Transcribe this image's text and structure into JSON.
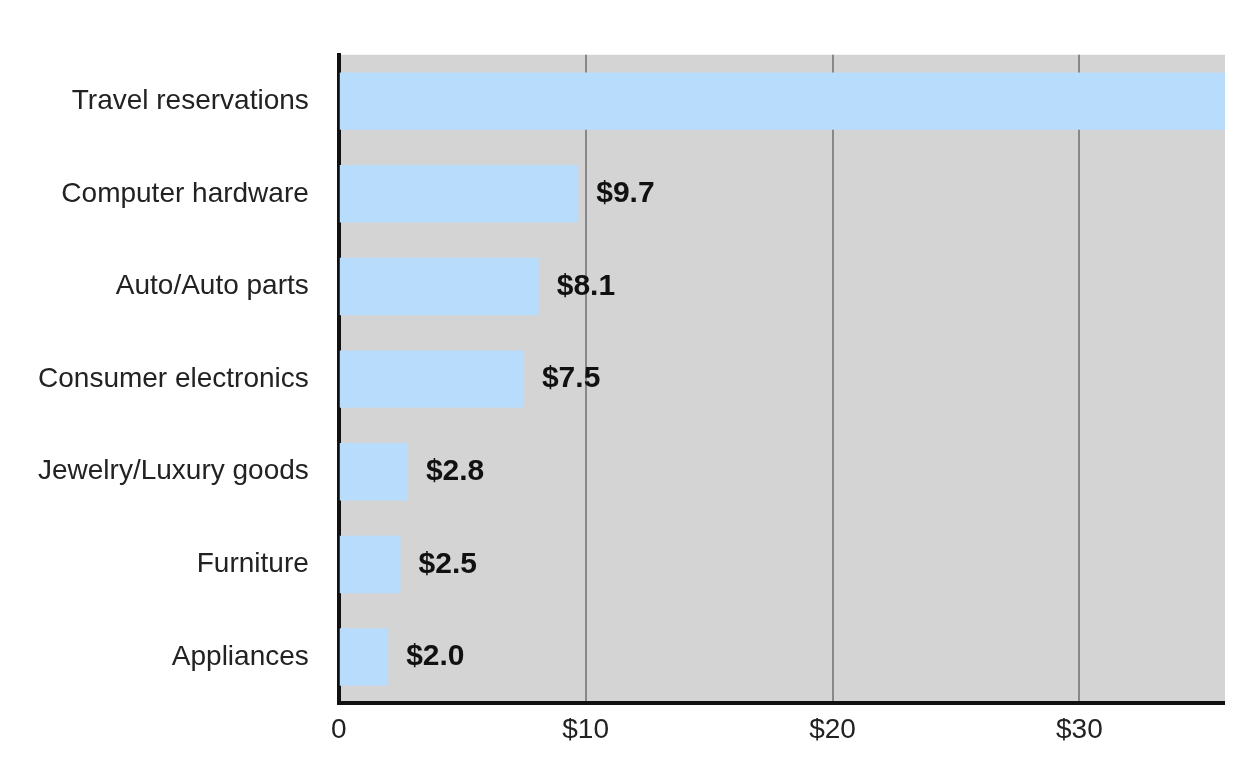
{
  "chart_data": {
    "type": "bar",
    "orientation": "horizontal",
    "categories": [
      "Travel reservations",
      "Computer hardware",
      "Auto/Auto parts",
      "Consumer electronics",
      "Jewelry/Luxury goods",
      "Furniture",
      "Appliances"
    ],
    "values": [
      35.9,
      9.7,
      8.1,
      7.5,
      2.8,
      2.5,
      2.0
    ],
    "value_labels": [
      null,
      "$9.7",
      "$8.1",
      "$7.5",
      "$2.8",
      "$2.5",
      "$2.0"
    ],
    "color": "#b8dcfc",
    "xlim": [
      0,
      35.9
    ],
    "xticks": [
      0,
      {
        "value": 10,
        "label": "$10"
      },
      {
        "value": 20,
        "label": "$20"
      },
      {
        "value": 30,
        "label": "$30"
      }
    ],
    "grid": "x",
    "legend": false
  }
}
